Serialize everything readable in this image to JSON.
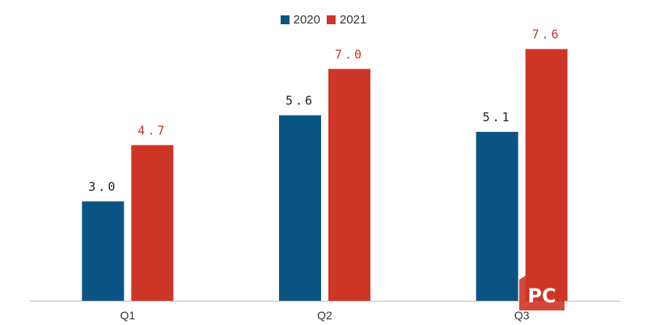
{
  "chart_data": {
    "type": "bar",
    "categories": [
      "Q1",
      "Q2",
      "Q3"
    ],
    "series": [
      {
        "name": "2020",
        "color": "#0a5484",
        "values": [
          3.0,
          5.6,
          5.1
        ]
      },
      {
        "name": "2021",
        "color": "#cd3526",
        "values": [
          4.7,
          7.0,
          7.6
        ]
      }
    ],
    "data_labels": [
      [
        "3.0",
        "5.6",
        "5.1"
      ],
      [
        "4.7",
        "7.0",
        "7.6"
      ]
    ],
    "data_label_colors": [
      "#222222",
      "#cd3526"
    ],
    "ylim": [
      0,
      8.3
    ],
    "grid": false,
    "legend_position": "top-center",
    "axis_line_color": "#bfbfbf"
  },
  "watermark": {
    "text": "PC",
    "color": "#cd3526"
  }
}
